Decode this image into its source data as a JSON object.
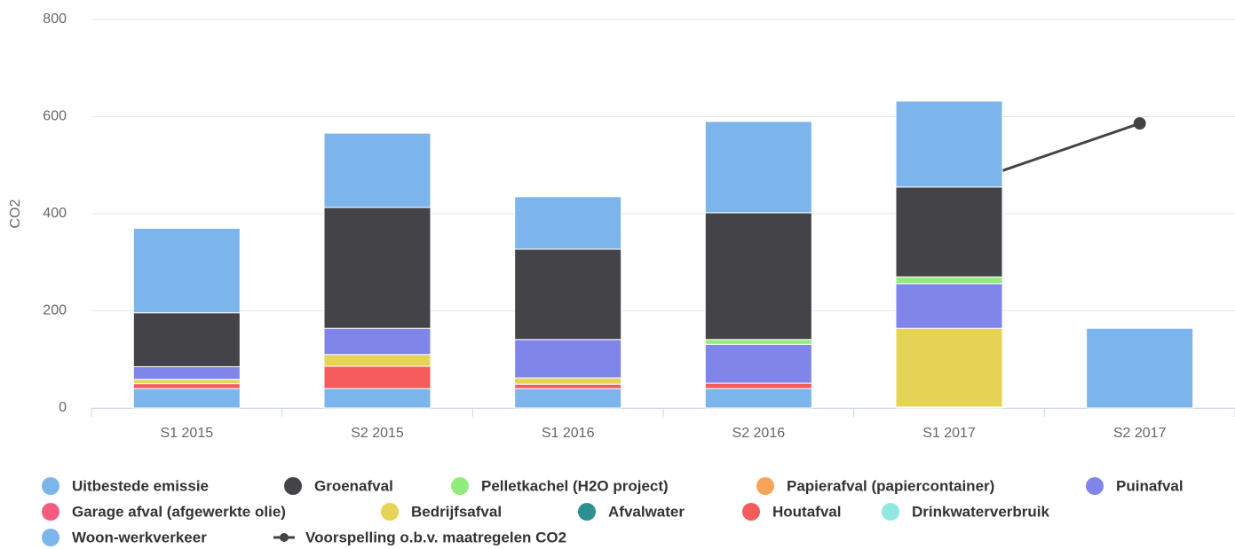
{
  "chart_data": {
    "type": "stacked-bar",
    "y_label": "CO2",
    "categories": [
      "S1 2015",
      "S2 2015",
      "S1 2016",
      "S2 2016",
      "S1 2017",
      "S2 2017"
    ],
    "ylim": [
      0,
      800
    ],
    "yticks": [
      0,
      200,
      400,
      600,
      800
    ],
    "grid": true,
    "series": [
      {
        "name": "Uitbestede emissie",
        "color": "#7cb5ec",
        "values": [
          174,
          153,
          108,
          188,
          177,
          null
        ]
      },
      {
        "name": "Groenafval",
        "color": "#434348",
        "values": [
          111,
          249,
          186,
          261,
          185,
          null
        ]
      },
      {
        "name": "Pelletkachel (H2O project)",
        "color": "#90ed7d",
        "values": [
          null,
          null,
          null,
          10,
          14,
          null
        ]
      },
      {
        "name": "Papierafval (papiercontainer)",
        "color": "#f7a35c",
        "values": [
          null,
          null,
          null,
          null,
          null,
          null
        ]
      },
      {
        "name": "Puinafval",
        "color": "#8085e9",
        "values": [
          26,
          54,
          79,
          80,
          92,
          null
        ]
      },
      {
        "name": "Garage afval (afgewerkte olie)",
        "color": "#f15c80",
        "values": [
          null,
          null,
          null,
          null,
          null,
          null
        ]
      },
      {
        "name": "Bedrijfsafval",
        "color": "#e4d354",
        "values": [
          9,
          24,
          13,
          null,
          162,
          null
        ]
      },
      {
        "name": "Afvalwater",
        "color": "#2b908f",
        "values": [
          null,
          null,
          null,
          null,
          null,
          null
        ]
      },
      {
        "name": "Houtafval",
        "color": "#f45b5b",
        "values": [
          10,
          46,
          9,
          11,
          null,
          null
        ]
      },
      {
        "name": "Drinkwaterverbruik",
        "color": "#91e8e1",
        "values": [
          null,
          null,
          null,
          null,
          null,
          null
        ]
      },
      {
        "name": "Woon-werkverkeer",
        "color": "#7cb5ec",
        "values": [
          40,
          40,
          40,
          40,
          2,
          164
        ]
      },
      {
        "name": "Voorspelling o.b.v. maatregelen CO2",
        "color": "#434348",
        "line": true,
        "values": [
          null,
          null,
          null,
          null,
          451,
          586
        ]
      }
    ]
  }
}
